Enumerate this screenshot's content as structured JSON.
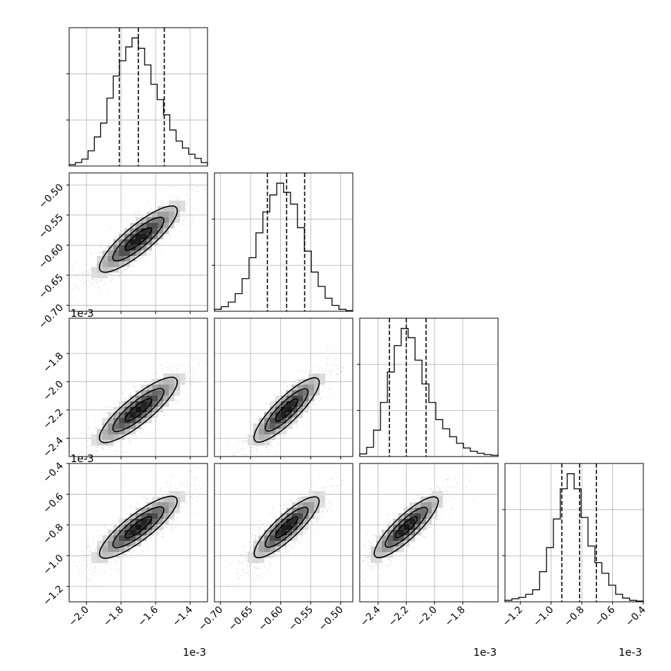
{
  "chart_data": {
    "type": "corner",
    "parameters": 4,
    "grid": true,
    "scale_factor_label": "1e-3",
    "histogram_style": "step",
    "quantile_line_style": "dashed",
    "contour_levels": 3,
    "axes": [
      {
        "range": [
          -2.1,
          -1.3
        ],
        "ticks": [
          -2.0,
          -1.8,
          -1.6,
          -1.4
        ],
        "tick_labels": [
          "−2.0",
          "−1.8",
          "−1.6",
          "−1.4"
        ],
        "median": -1.7,
        "quantiles": [
          -1.81,
          -1.7,
          -1.55
        ],
        "histogram": [
          2,
          5,
          10,
          22,
          42,
          62,
          98,
          130,
          152,
          172,
          185,
          170,
          146,
          118,
          96,
          74,
          52,
          36,
          26,
          17,
          11,
          5
        ]
      },
      {
        "range": [
          -0.71,
          -0.48
        ],
        "ticks": [
          -0.7,
          -0.65,
          -0.6,
          -0.55,
          -0.5
        ],
        "tick_labels": [
          "−0.70",
          "−0.65",
          "−0.60",
          "−0.55",
          "−0.50"
        ],
        "median": -0.59,
        "quantiles": [
          -0.622,
          -0.59,
          -0.56
        ],
        "histogram": [
          3,
          7,
          14,
          27,
          50,
          82,
          120,
          152,
          178,
          196,
          182,
          164,
          128,
          92,
          60,
          38,
          20,
          9,
          3,
          1
        ]
      },
      {
        "range": [
          -2.53,
          -1.55
        ],
        "ticks": [
          -2.4,
          -2.2,
          -2.0,
          -1.8
        ],
        "tick_labels": [
          "−2.4",
          "−2.2",
          "−2.0",
          "−1.8"
        ],
        "median": -2.2,
        "quantiles": [
          -2.32,
          -2.2,
          -2.06
        ],
        "histogram": [
          4,
          14,
          40,
          82,
          128,
          168,
          194,
          180,
          146,
          110,
          82,
          56,
          42,
          30,
          20,
          13,
          8,
          5,
          3,
          2
        ]
      },
      {
        "range": [
          -1.3,
          -0.4
        ],
        "ticks": [
          -1.2,
          -1.0,
          -0.8,
          -0.6,
          -0.4
        ],
        "tick_labels": [
          "−1.2",
          "−1.0",
          "−0.8",
          "−0.6",
          "−0.4"
        ],
        "median": -0.815,
        "quantiles": [
          -0.93,
          -0.815,
          -0.705
        ],
        "histogram": [
          2,
          4,
          6,
          10,
          16,
          40,
          72,
          110,
          150,
          170,
          150,
          112,
          74,
          52,
          38,
          22,
          10,
          5,
          2,
          1
        ]
      }
    ]
  }
}
